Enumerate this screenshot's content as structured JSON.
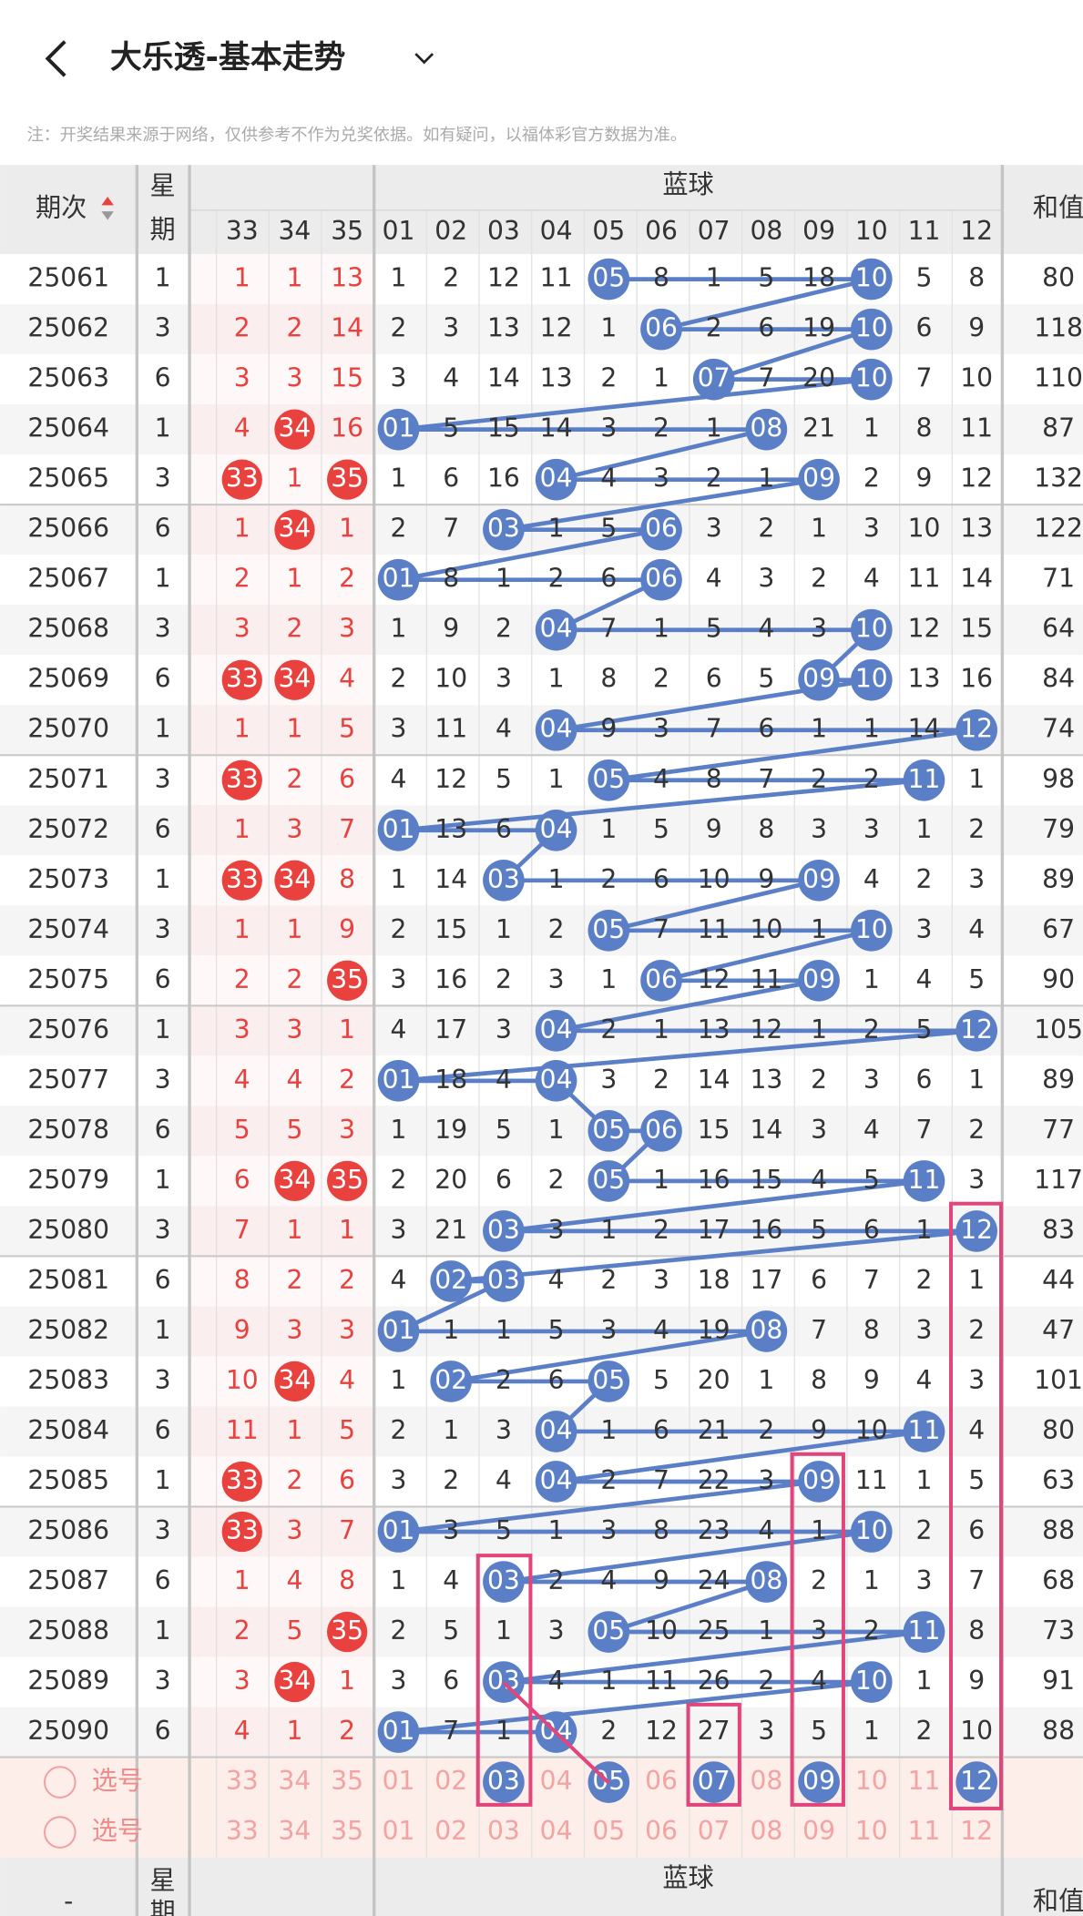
{
  "header": {
    "title": "大乐透-基本走势"
  },
  "note": "注：开奖结果来源于网络，仅供参考不作为兑奖依据。如有疑问，以福体彩官方数据为准。",
  "table": {
    "columns": {
      "period": "期次",
      "week_top": "星",
      "week_bottom": "期",
      "blue": "蓝球",
      "sum": "和值",
      "red_numbers": [
        "33",
        "34",
        "35"
      ],
      "blue_numbers": [
        "01",
        "02",
        "03",
        "04",
        "05",
        "06",
        "07",
        "08",
        "09",
        "10",
        "11",
        "12"
      ]
    },
    "rows": [
      {
        "period": "25061",
        "week": "1",
        "red": [
          "1",
          "1",
          "13"
        ],
        "red_hits": [],
        "blue": [
          "1",
          "2",
          "12",
          "11",
          "05",
          "8",
          "1",
          "5",
          "18",
          "10",
          "5",
          "8"
        ],
        "blue_hits": [
          4,
          9
        ],
        "sum": "80"
      },
      {
        "period": "25062",
        "week": "3",
        "red": [
          "2",
          "2",
          "14"
        ],
        "red_hits": [],
        "blue": [
          "2",
          "3",
          "13",
          "12",
          "1",
          "06",
          "2",
          "6",
          "19",
          "10",
          "6",
          "9"
        ],
        "blue_hits": [
          5,
          9
        ],
        "sum": "118"
      },
      {
        "period": "25063",
        "week": "6",
        "red": [
          "3",
          "3",
          "15"
        ],
        "red_hits": [],
        "blue": [
          "3",
          "4",
          "14",
          "13",
          "2",
          "1",
          "07",
          "7",
          "20",
          "10",
          "7",
          "10"
        ],
        "blue_hits": [
          6,
          9
        ],
        "sum": "110"
      },
      {
        "period": "25064",
        "week": "1",
        "red": [
          "4",
          "34",
          "16"
        ],
        "red_hits": [
          1
        ],
        "blue": [
          "01",
          "5",
          "15",
          "14",
          "3",
          "2",
          "1",
          "08",
          "21",
          "1",
          "8",
          "11"
        ],
        "blue_hits": [
          0,
          7
        ],
        "sum": "87"
      },
      {
        "period": "25065",
        "week": "3",
        "red": [
          "33",
          "1",
          "35"
        ],
        "red_hits": [
          0,
          2
        ],
        "blue": [
          "1",
          "6",
          "16",
          "04",
          "4",
          "3",
          "2",
          "1",
          "09",
          "2",
          "9",
          "12"
        ],
        "blue_hits": [
          3,
          8
        ],
        "sum": "132"
      },
      {
        "period": "25066",
        "week": "6",
        "red": [
          "1",
          "34",
          "1"
        ],
        "red_hits": [
          1
        ],
        "blue": [
          "2",
          "7",
          "03",
          "1",
          "5",
          "06",
          "3",
          "2",
          "1",
          "3",
          "10",
          "13"
        ],
        "blue_hits": [
          2,
          5
        ],
        "sum": "122"
      },
      {
        "period": "25067",
        "week": "1",
        "red": [
          "2",
          "1",
          "2"
        ],
        "red_hits": [],
        "blue": [
          "01",
          "8",
          "1",
          "2",
          "6",
          "06",
          "4",
          "3",
          "2",
          "4",
          "11",
          "14"
        ],
        "blue_hits": [
          0,
          5
        ],
        "sum": "71"
      },
      {
        "period": "25068",
        "week": "3",
        "red": [
          "3",
          "2",
          "3"
        ],
        "red_hits": [],
        "blue": [
          "1",
          "9",
          "2",
          "04",
          "7",
          "1",
          "5",
          "4",
          "3",
          "10",
          "12",
          "15"
        ],
        "blue_hits": [
          3,
          9
        ],
        "sum": "64"
      },
      {
        "period": "25069",
        "week": "6",
        "red": [
          "33",
          "34",
          "4"
        ],
        "red_hits": [
          0,
          1
        ],
        "blue": [
          "2",
          "10",
          "3",
          "1",
          "8",
          "2",
          "6",
          "5",
          "09",
          "10",
          "13",
          "16"
        ],
        "blue_hits": [
          8,
          9
        ],
        "sum": "84"
      },
      {
        "period": "25070",
        "week": "1",
        "red": [
          "1",
          "1",
          "5"
        ],
        "red_hits": [],
        "blue": [
          "3",
          "11",
          "4",
          "04",
          "9",
          "3",
          "7",
          "6",
          "1",
          "1",
          "14",
          "12"
        ],
        "blue_hits": [
          3,
          11
        ],
        "sum": "74"
      },
      {
        "period": "25071",
        "week": "3",
        "red": [
          "33",
          "2",
          "6"
        ],
        "red_hits": [
          0
        ],
        "blue": [
          "4",
          "12",
          "5",
          "1",
          "05",
          "4",
          "8",
          "7",
          "2",
          "2",
          "11",
          "1"
        ],
        "blue_hits": [
          4,
          10
        ],
        "sum": "98"
      },
      {
        "period": "25072",
        "week": "6",
        "red": [
          "1",
          "3",
          "7"
        ],
        "red_hits": [],
        "blue": [
          "01",
          "13",
          "6",
          "04",
          "1",
          "5",
          "9",
          "8",
          "3",
          "3",
          "1",
          "2"
        ],
        "blue_hits": [
          0,
          3
        ],
        "sum": "79"
      },
      {
        "period": "25073",
        "week": "1",
        "red": [
          "33",
          "34",
          "8"
        ],
        "red_hits": [
          0,
          1
        ],
        "blue": [
          "1",
          "14",
          "03",
          "1",
          "2",
          "6",
          "10",
          "9",
          "09",
          "4",
          "2",
          "3"
        ],
        "blue_hits": [
          2,
          8
        ],
        "sum": "89"
      },
      {
        "period": "25074",
        "week": "3",
        "red": [
          "1",
          "1",
          "9"
        ],
        "red_hits": [],
        "blue": [
          "2",
          "15",
          "1",
          "2",
          "05",
          "7",
          "11",
          "10",
          "1",
          "10",
          "3",
          "4"
        ],
        "blue_hits": [
          4,
          9
        ],
        "sum": "67"
      },
      {
        "period": "25075",
        "week": "6",
        "red": [
          "2",
          "2",
          "35"
        ],
        "red_hits": [
          2
        ],
        "blue": [
          "3",
          "16",
          "2",
          "3",
          "1",
          "06",
          "12",
          "11",
          "09",
          "1",
          "4",
          "5"
        ],
        "blue_hits": [
          5,
          8
        ],
        "sum": "90"
      },
      {
        "period": "25076",
        "week": "1",
        "red": [
          "3",
          "3",
          "1"
        ],
        "red_hits": [],
        "blue": [
          "4",
          "17",
          "3",
          "04",
          "2",
          "1",
          "13",
          "12",
          "1",
          "2",
          "5",
          "12"
        ],
        "blue_hits": [
          3,
          11
        ],
        "sum": "105"
      },
      {
        "period": "25077",
        "week": "3",
        "red": [
          "4",
          "4",
          "2"
        ],
        "red_hits": [],
        "blue": [
          "01",
          "18",
          "4",
          "04",
          "3",
          "2",
          "14",
          "13",
          "2",
          "3",
          "6",
          "1"
        ],
        "blue_hits": [
          0,
          3
        ],
        "sum": "89"
      },
      {
        "period": "25078",
        "week": "6",
        "red": [
          "5",
          "5",
          "3"
        ],
        "red_hits": [],
        "blue": [
          "1",
          "19",
          "5",
          "1",
          "05",
          "06",
          "15",
          "14",
          "3",
          "4",
          "7",
          "2"
        ],
        "blue_hits": [
          4,
          5
        ],
        "sum": "77"
      },
      {
        "period": "25079",
        "week": "1",
        "red": [
          "6",
          "34",
          "35"
        ],
        "red_hits": [
          1,
          2
        ],
        "blue": [
          "2",
          "20",
          "6",
          "2",
          "05",
          "1",
          "16",
          "15",
          "4",
          "5",
          "11",
          "3"
        ],
        "blue_hits": [
          4,
          10
        ],
        "sum": "117"
      },
      {
        "period": "25080",
        "week": "3",
        "red": [
          "7",
          "1",
          "1"
        ],
        "red_hits": [],
        "blue": [
          "3",
          "21",
          "03",
          "3",
          "1",
          "2",
          "17",
          "16",
          "5",
          "6",
          "1",
          "12"
        ],
        "blue_hits": [
          2,
          11
        ],
        "sum": "83"
      },
      {
        "period": "25081",
        "week": "6",
        "red": [
          "8",
          "2",
          "2"
        ],
        "red_hits": [],
        "blue": [
          "4",
          "02",
          "03",
          "4",
          "2",
          "3",
          "18",
          "17",
          "6",
          "7",
          "2",
          "1"
        ],
        "blue_hits": [
          1,
          2
        ],
        "sum": "44"
      },
      {
        "period": "25082",
        "week": "1",
        "red": [
          "9",
          "3",
          "3"
        ],
        "red_hits": [],
        "blue": [
          "01",
          "1",
          "1",
          "5",
          "3",
          "4",
          "19",
          "08",
          "7",
          "8",
          "3",
          "2"
        ],
        "blue_hits": [
          0,
          7
        ],
        "sum": "47"
      },
      {
        "period": "25083",
        "week": "3",
        "red": [
          "10",
          "34",
          "4"
        ],
        "red_hits": [
          1
        ],
        "blue": [
          "1",
          "02",
          "2",
          "6",
          "05",
          "5",
          "20",
          "1",
          "8",
          "9",
          "4",
          "3"
        ],
        "blue_hits": [
          1,
          4
        ],
        "sum": "101"
      },
      {
        "period": "25084",
        "week": "6",
        "red": [
          "11",
          "1",
          "5"
        ],
        "red_hits": [],
        "blue": [
          "2",
          "1",
          "3",
          "04",
          "1",
          "6",
          "21",
          "2",
          "9",
          "10",
          "11",
          "4"
        ],
        "blue_hits": [
          3,
          10
        ],
        "sum": "80"
      },
      {
        "period": "25085",
        "week": "1",
        "red": [
          "33",
          "2",
          "6"
        ],
        "red_hits": [
          0
        ],
        "blue": [
          "3",
          "2",
          "4",
          "04",
          "2",
          "7",
          "22",
          "3",
          "09",
          "11",
          "1",
          "5"
        ],
        "blue_hits": [
          3,
          8
        ],
        "sum": "63"
      },
      {
        "period": "25086",
        "week": "3",
        "red": [
          "33",
          "3",
          "7"
        ],
        "red_hits": [
          0
        ],
        "blue": [
          "01",
          "3",
          "5",
          "1",
          "3",
          "8",
          "23",
          "4",
          "1",
          "10",
          "2",
          "6"
        ],
        "blue_hits": [
          0,
          9
        ],
        "sum": "88"
      },
      {
        "period": "25087",
        "week": "6",
        "red": [
          "1",
          "4",
          "8"
        ],
        "red_hits": [],
        "blue": [
          "1",
          "4",
          "03",
          "2",
          "4",
          "9",
          "24",
          "08",
          "2",
          "1",
          "3",
          "7"
        ],
        "blue_hits": [
          2,
          7
        ],
        "sum": "68"
      },
      {
        "period": "25088",
        "week": "1",
        "red": [
          "2",
          "5",
          "35"
        ],
        "red_hits": [
          2
        ],
        "blue": [
          "2",
          "5",
          "1",
          "3",
          "05",
          "10",
          "25",
          "1",
          "3",
          "2",
          "11",
          "8"
        ],
        "blue_hits": [
          4,
          10
        ],
        "sum": "73"
      },
      {
        "period": "25089",
        "week": "3",
        "red": [
          "3",
          "34",
          "1"
        ],
        "red_hits": [
          1
        ],
        "blue": [
          "3",
          "6",
          "03",
          "4",
          "1",
          "11",
          "26",
          "2",
          "4",
          "10",
          "1",
          "9"
        ],
        "blue_hits": [
          2,
          9
        ],
        "sum": "91"
      },
      {
        "period": "25090",
        "week": "6",
        "red": [
          "4",
          "1",
          "2"
        ],
        "red_hits": [],
        "blue": [
          "01",
          "7",
          "1",
          "04",
          "2",
          "12",
          "27",
          "3",
          "5",
          "1",
          "2",
          "10"
        ],
        "blue_hits": [
          0,
          3
        ],
        "sum": "88"
      }
    ]
  },
  "selection": {
    "rows": [
      {
        "label": "选号",
        "selected": [
          2,
          4,
          6,
          8,
          11
        ]
      },
      {
        "label": "选号",
        "selected": []
      }
    ]
  },
  "footer": {
    "period": "-"
  }
}
